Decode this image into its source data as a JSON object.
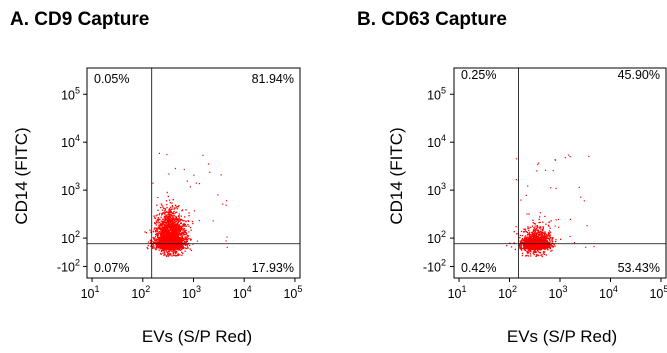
{
  "chart_data": [
    {
      "type": "scatter",
      "title": "A. CD9 Capture",
      "xlabel": "EVs (S/P Red)",
      "ylabel": "CD14 (FITC)",
      "x_scale": "log",
      "y_scale": "biexponential",
      "x_ticks": [
        {
          "base": "10",
          "exp": "1"
        },
        {
          "base": "10",
          "exp": "2"
        },
        {
          "base": "10",
          "exp": "3"
        },
        {
          "base": "10",
          "exp": "4"
        },
        {
          "base": "10",
          "exp": "5"
        }
      ],
      "y_ticks": [
        {
          "base": "-10",
          "exp": "2"
        },
        {
          "base": "10",
          "exp": "2"
        },
        {
          "base": "10",
          "exp": "3"
        },
        {
          "base": "10",
          "exp": "4"
        },
        {
          "base": "10",
          "exp": "5"
        }
      ],
      "gate": {
        "x": 150,
        "y": 60
      },
      "quadrants": {
        "upper_left": "0.05%",
        "upper_right": "81.94%",
        "lower_left": "0.07%",
        "lower_right": "17.93%"
      },
      "cloud": {
        "x_center": 350,
        "y_center": 90
      },
      "point_color": "#ff0000"
    },
    {
      "type": "scatter",
      "title": "B. CD63 Capture",
      "xlabel": "EVs (S/P Red)",
      "ylabel": "CD14 (FITC)",
      "x_scale": "log",
      "y_scale": "biexponential",
      "x_ticks": [
        {
          "base": "10",
          "exp": "1"
        },
        {
          "base": "10",
          "exp": "2"
        },
        {
          "base": "10",
          "exp": "3"
        },
        {
          "base": "10",
          "exp": "4"
        },
        {
          "base": "10",
          "exp": "5"
        }
      ],
      "y_ticks": [
        {
          "base": "-10",
          "exp": "2"
        },
        {
          "base": "10",
          "exp": "2"
        },
        {
          "base": "10",
          "exp": "3"
        },
        {
          "base": "10",
          "exp": "4"
        },
        {
          "base": "10",
          "exp": "5"
        }
      ],
      "gate": {
        "x": 150,
        "y": 60
      },
      "quadrants": {
        "upper_left": "0.25%",
        "upper_right": "45.90%",
        "lower_left": "0.42%",
        "lower_right": "53.43%"
      },
      "cloud": {
        "x_center": 330,
        "y_center": 60
      },
      "point_color": "#ff0000"
    }
  ]
}
